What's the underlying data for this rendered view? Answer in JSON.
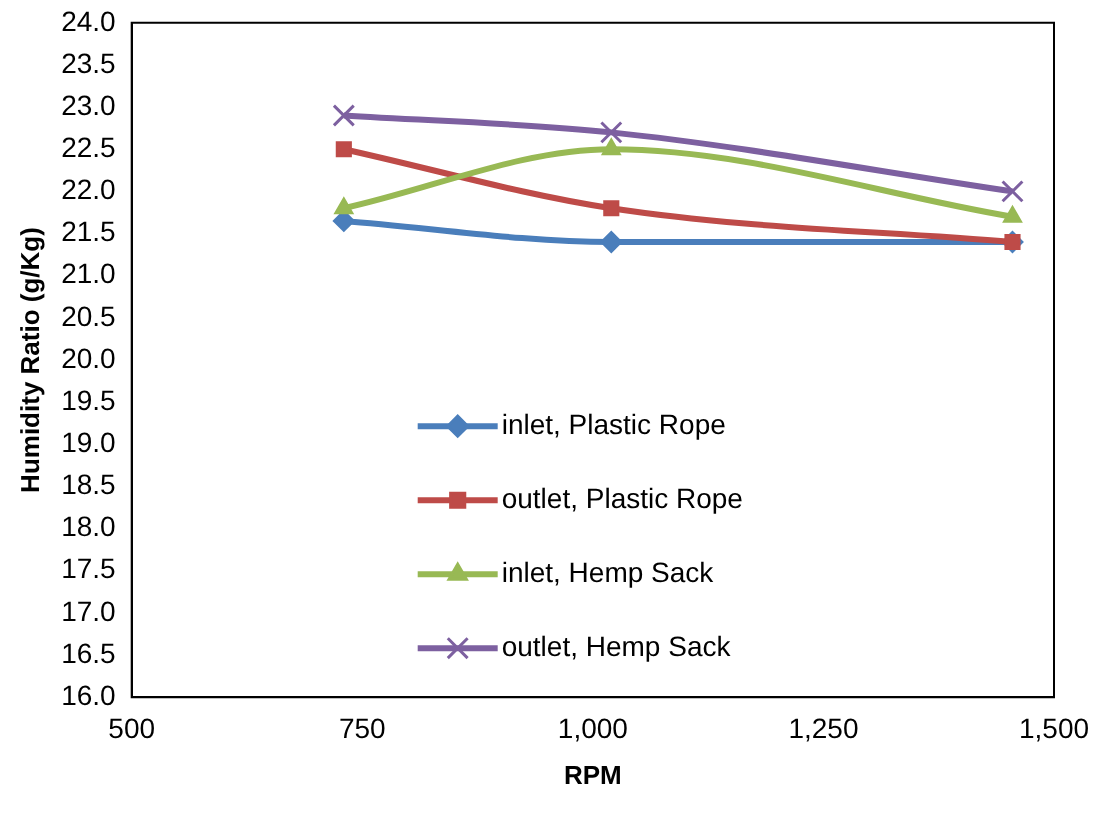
{
  "chart_data": {
    "type": "line",
    "xlabel": "RPM",
    "ylabel": "Humidity Ratio (g/Kg)",
    "x": [
      730,
      1020,
      1455
    ],
    "series": [
      {
        "name": "inlet, Plastic Rope",
        "color": "#4a7ebb",
        "marker": "diamond",
        "values": [
          21.65,
          21.4,
          21.4
        ]
      },
      {
        "name": "outlet, Plastic Rope",
        "color": "#be4b48",
        "marker": "square",
        "values": [
          22.5,
          21.8,
          21.4
        ]
      },
      {
        "name": "inlet, Hemp Sack",
        "color": "#98b954",
        "marker": "triangle",
        "values": [
          21.8,
          22.5,
          21.7
        ]
      },
      {
        "name": "outlet, Hemp Sack",
        "color": "#7d60a0",
        "marker": "cross",
        "values": [
          22.9,
          22.7,
          22.0
        ]
      }
    ],
    "xlim": [
      500,
      1500
    ],
    "xticks": [
      500,
      750,
      {
        "value": 1000,
        "label": "1,000"
      },
      {
        "value": 1250,
        "label": "1,250"
      },
      {
        "value": 1500,
        "label": "1,500"
      }
    ],
    "ylim": [
      16,
      24
    ],
    "yticks": [
      {
        "value": 16,
        "label": "16.0"
      },
      16.5,
      {
        "value": 17,
        "label": "17.0"
      },
      17.5,
      {
        "value": 18,
        "label": "18.0"
      },
      18.5,
      {
        "value": 19,
        "label": "19.0"
      },
      19.5,
      {
        "value": 20,
        "label": "20.0"
      },
      20.5,
      {
        "value": 21,
        "label": "21.0"
      },
      21.5,
      {
        "value": 22,
        "label": "22.0"
      },
      22.5,
      {
        "value": 23,
        "label": "23.0"
      },
      23.5,
      {
        "value": 24,
        "label": "24.0"
      }
    ],
    "grid": false,
    "legend": "bottom right"
  }
}
